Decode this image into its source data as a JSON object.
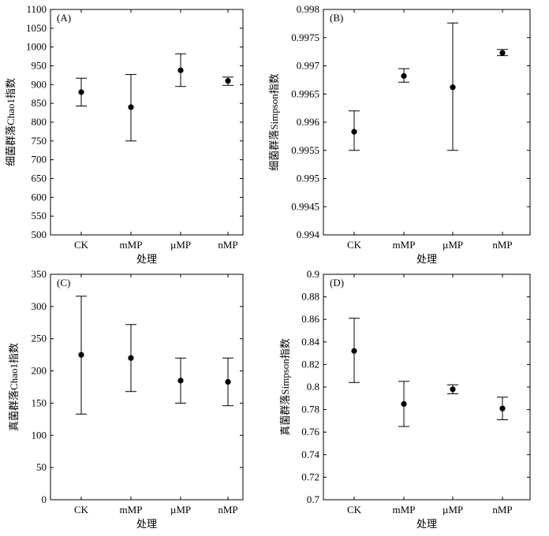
{
  "chart_data": [
    {
      "type": "scatter",
      "panel_label": "(A)",
      "xlabel": "处理",
      "ylabel": "细菌群落Chao1指数",
      "categories": [
        "CK",
        "mMP",
        "µMP",
        "nMP"
      ],
      "values": [
        880,
        840,
        938,
        910
      ],
      "error_low": [
        843,
        750,
        895,
        898
      ],
      "error_high": [
        917,
        927,
        982,
        920
      ],
      "ylim": [
        500,
        1100
      ],
      "yticks": [
        "500",
        "550",
        "600",
        "650",
        "700",
        "750",
        "800",
        "850",
        "900",
        "950",
        "1000",
        "1050",
        "1100"
      ],
      "grid": false
    },
    {
      "type": "scatter",
      "panel_label": "(B)",
      "xlabel": "处理",
      "ylabel": "细菌群落Simpson指数",
      "categories": [
        "CK",
        "mMP",
        "µMP",
        "nMP"
      ],
      "values": [
        0.99583,
        0.99682,
        0.99662,
        0.99723
      ],
      "error_low": [
        0.9955,
        0.99671,
        0.9955,
        0.99718
      ],
      "error_high": [
        0.9962,
        0.99695,
        0.99776,
        0.99729
      ],
      "ylim": [
        0.994,
        0.998
      ],
      "yticks": [
        "0.994",
        "0.9945",
        "0.995",
        "0.9955",
        "0.996",
        "0.9965",
        "0.997",
        "0.9975",
        "0.998"
      ],
      "grid": false
    },
    {
      "type": "scatter",
      "panel_label": "(C)",
      "xlabel": "处理",
      "ylabel": "真菌群落Chao1指数",
      "categories": [
        "CK",
        "mMP",
        "µMP",
        "nMP"
      ],
      "values": [
        225,
        220,
        185,
        183
      ],
      "error_low": [
        133,
        168,
        150,
        146
      ],
      "error_high": [
        316,
        272,
        220,
        220
      ],
      "ylim": [
        0,
        350
      ],
      "yticks": [
        "0",
        "50",
        "100",
        "150",
        "200",
        "250",
        "300",
        "350"
      ],
      "grid": false
    },
    {
      "type": "scatter",
      "panel_label": "(D)",
      "xlabel": "处理",
      "ylabel": "真菌群落Simpson指数",
      "categories": [
        "CK",
        "mMP",
        "µMP",
        "nMP"
      ],
      "values": [
        0.832,
        0.785,
        0.798,
        0.781
      ],
      "error_low": [
        0.804,
        0.765,
        0.794,
        0.771
      ],
      "error_high": [
        0.861,
        0.805,
        0.802,
        0.791
      ],
      "ylim": [
        0.7,
        0.9
      ],
      "yticks": [
        "0.7",
        "0.72",
        "0.74",
        "0.76",
        "0.78",
        "0.8",
        "0.82",
        "0.84",
        "0.86",
        "0.88",
        "0.9"
      ],
      "grid": false
    }
  ]
}
